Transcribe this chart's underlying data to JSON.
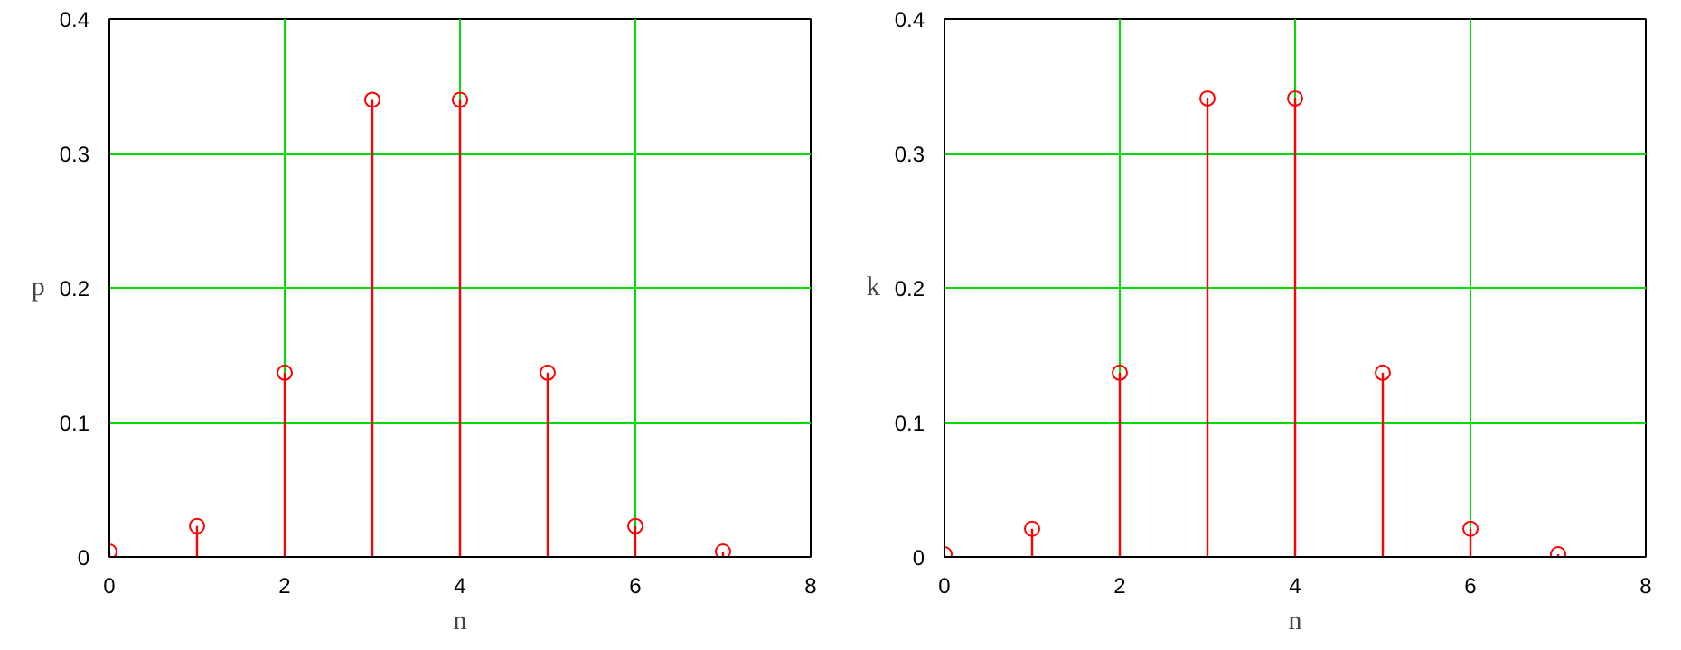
{
  "chart_data": [
    {
      "type": "lollipop",
      "xlabel": "n",
      "ylabel": "p",
      "x": [
        0,
        1,
        2,
        3,
        4,
        5,
        6,
        7
      ],
      "series": [
        {
          "color": "#ff0000",
          "values": [
            0.004,
            0.023,
            0.137,
            0.34,
            0.34,
            0.137,
            0.023,
            0.004
          ]
        }
      ],
      "xlim": [
        0,
        8
      ],
      "ylim": [
        0,
        0.4
      ],
      "xticks": [
        0,
        2,
        4,
        6,
        8
      ],
      "yticks": [
        0,
        0.1,
        0.2,
        0.3,
        0.4
      ],
      "grid": true,
      "marker": "circle"
    },
    {
      "type": "lollipop",
      "xlabel": "n",
      "ylabel": "k",
      "x": [
        0,
        1,
        2,
        3,
        4,
        5,
        6,
        7
      ],
      "series": [
        {
          "color": "#ff0000",
          "values": [
            0.002,
            0.021,
            0.137,
            0.341,
            0.341,
            0.137,
            0.021,
            0.002
          ]
        }
      ],
      "xlim": [
        0,
        8
      ],
      "ylim": [
        0,
        0.4
      ],
      "xticks": [
        0,
        2,
        4,
        6,
        8
      ],
      "yticks": [
        0,
        0.1,
        0.2,
        0.3,
        0.4
      ],
      "grid": true,
      "marker": "circle"
    }
  ]
}
